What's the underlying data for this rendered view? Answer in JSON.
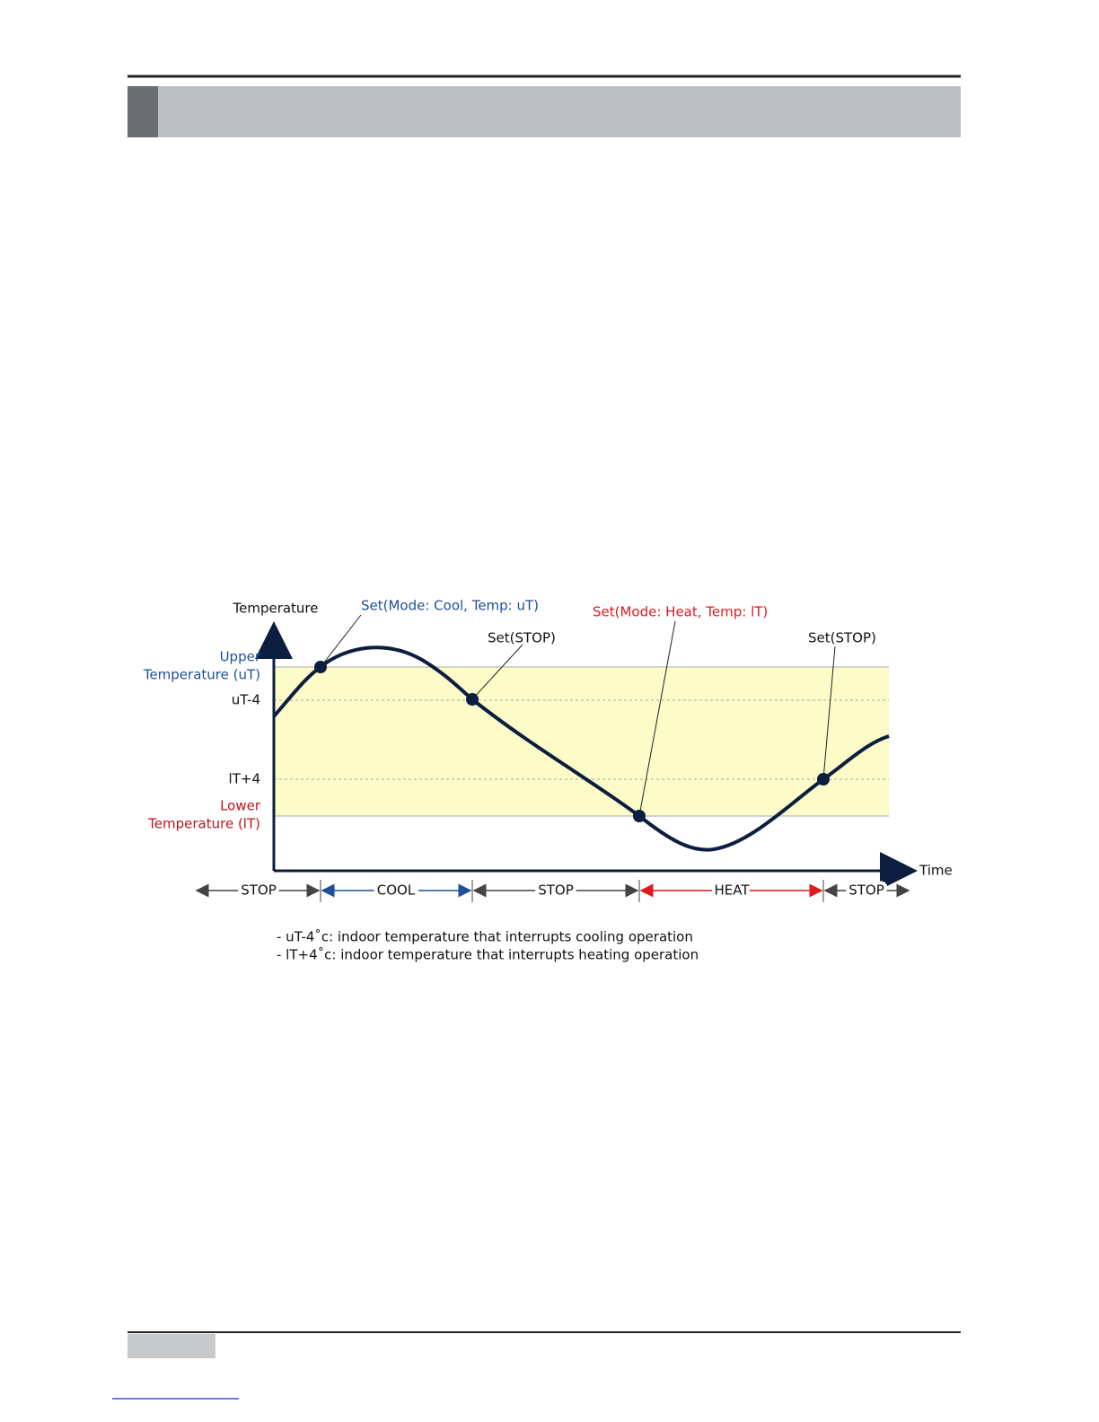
{
  "diagram": {
    "y_axis_label": "Temperature",
    "x_axis_label": "Time",
    "upper_temperature": {
      "line1": "Upper",
      "line2": "Temperature (uT)"
    },
    "upper_offset": "uT-4",
    "lower_offset": "lT+4",
    "lower_temperature": {
      "line1": "Lower",
      "line2": "Temperature (lT)"
    },
    "events": [
      "Set(Mode: Cool, Temp: uT)",
      "Set(STOP)",
      "Set(Mode: Heat, Temp: lT)",
      "Set(STOP)"
    ],
    "phases": [
      "STOP",
      "COOL",
      "STOP",
      "HEAT",
      "STOP"
    ],
    "notes": [
      "- uT-4˚c: indoor temperature that interrupts cooling operation",
      "- lT+4˚c: indoor temperature that interrupts heating operation"
    ]
  }
}
